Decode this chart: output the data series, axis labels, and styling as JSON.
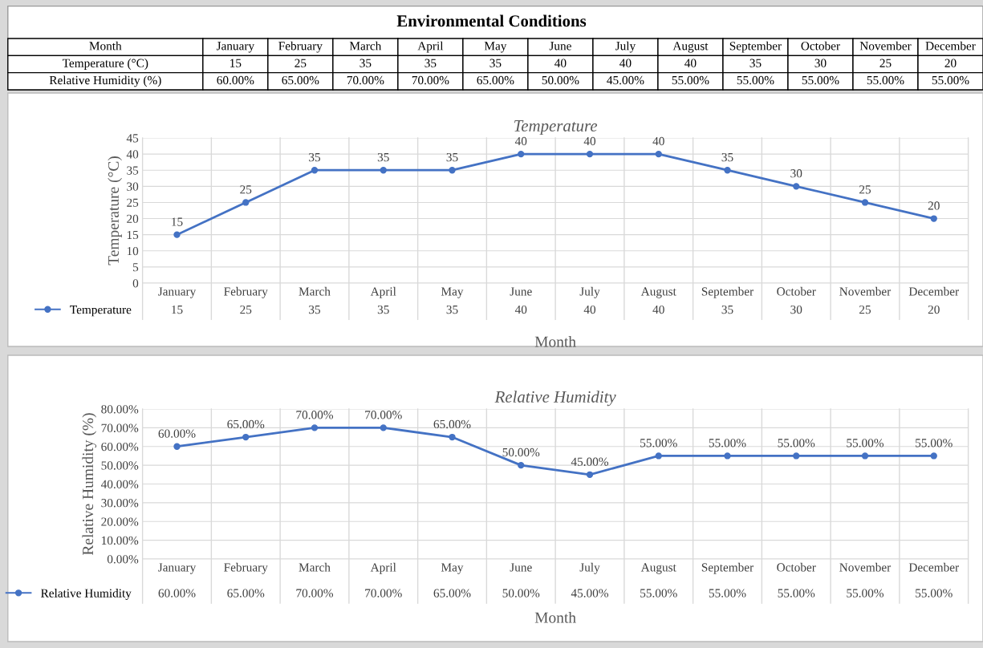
{
  "chart_data": [
    {
      "type": "other",
      "title": "Environmental Conditions",
      "xlabel": "Month",
      "categories": [
        "January",
        "February",
        "March",
        "April",
        "May",
        "June",
        "July",
        "August",
        "September",
        "October",
        "November",
        "December"
      ],
      "series": [
        {
          "name": "Temperature (°C)",
          "values": [
            15,
            25,
            35,
            35,
            35,
            40,
            40,
            40,
            35,
            30,
            25,
            20
          ],
          "value_labels": [
            "15",
            "25",
            "35",
            "35",
            "35",
            "40",
            "40",
            "40",
            "35",
            "30",
            "25",
            "20"
          ]
        },
        {
          "name": "Relative Humidity (%)",
          "values": [
            60,
            65,
            70,
            70,
            65,
            50,
            45,
            55,
            55,
            55,
            55,
            55
          ],
          "value_labels": [
            "60.00%",
            "65.00%",
            "70.00%",
            "70.00%",
            "65.00%",
            "50.00%",
            "45.00%",
            "55.00%",
            "55.00%",
            "55.00%",
            "55.00%",
            "55.00%"
          ]
        }
      ]
    },
    {
      "type": "line",
      "title": "Temperature",
      "xlabel": "Month",
      "ylabel": "Temperature (°C)",
      "categories": [
        "January",
        "February",
        "March",
        "April",
        "May",
        "June",
        "July",
        "August",
        "September",
        "October",
        "November",
        "December"
      ],
      "series": [
        {
          "name": "Temperature",
          "color": "#4472c4",
          "values": [
            15,
            25,
            35,
            35,
            35,
            40,
            40,
            40,
            35,
            30,
            25,
            20
          ],
          "value_labels": [
            "15",
            "25",
            "35",
            "35",
            "35",
            "40",
            "40",
            "40",
            "35",
            "30",
            "25",
            "20"
          ]
        }
      ],
      "ylim": [
        0,
        45
      ],
      "yticks": [
        0,
        5,
        10,
        15,
        20,
        25,
        30,
        35,
        40,
        45
      ],
      "grid": true,
      "legend": "bottom",
      "marker": "circle",
      "line_style": "solid"
    },
    {
      "type": "line",
      "title": "Relative Humidity",
      "xlabel": "Month",
      "ylabel": "Relative Humidity (%)",
      "categories": [
        "January",
        "February",
        "March",
        "April",
        "May",
        "June",
        "July",
        "August",
        "September",
        "October",
        "November",
        "December"
      ],
      "series": [
        {
          "name": "Relative Humidity",
          "color": "#4472c4",
          "values": [
            60,
            65,
            70,
            70,
            65,
            50,
            45,
            55,
            55,
            55,
            55,
            55
          ],
          "value_labels": [
            "60.00%",
            "65.00%",
            "70.00%",
            "70.00%",
            "65.00%",
            "50.00%",
            "45.00%",
            "55.00%",
            "55.00%",
            "55.00%",
            "55.00%",
            "55.00%"
          ]
        }
      ],
      "ylim": [
        0,
        80
      ],
      "yticks": [
        {
          "value": 0,
          "label": "0.00%"
        },
        {
          "value": 10,
          "label": "10.00%"
        },
        {
          "value": 20,
          "label": "20.00%"
        },
        {
          "value": 30,
          "label": "30.00%"
        },
        {
          "value": 40,
          "label": "40.00%"
        },
        {
          "value": 50,
          "label": "50.00%"
        },
        {
          "value": 60,
          "label": "60.00%"
        },
        {
          "value": 70,
          "label": "70.00%"
        },
        {
          "value": 80,
          "label": "80.00%"
        }
      ],
      "grid": true,
      "legend": "bottom",
      "marker": "circle",
      "line_style": "solid"
    }
  ]
}
